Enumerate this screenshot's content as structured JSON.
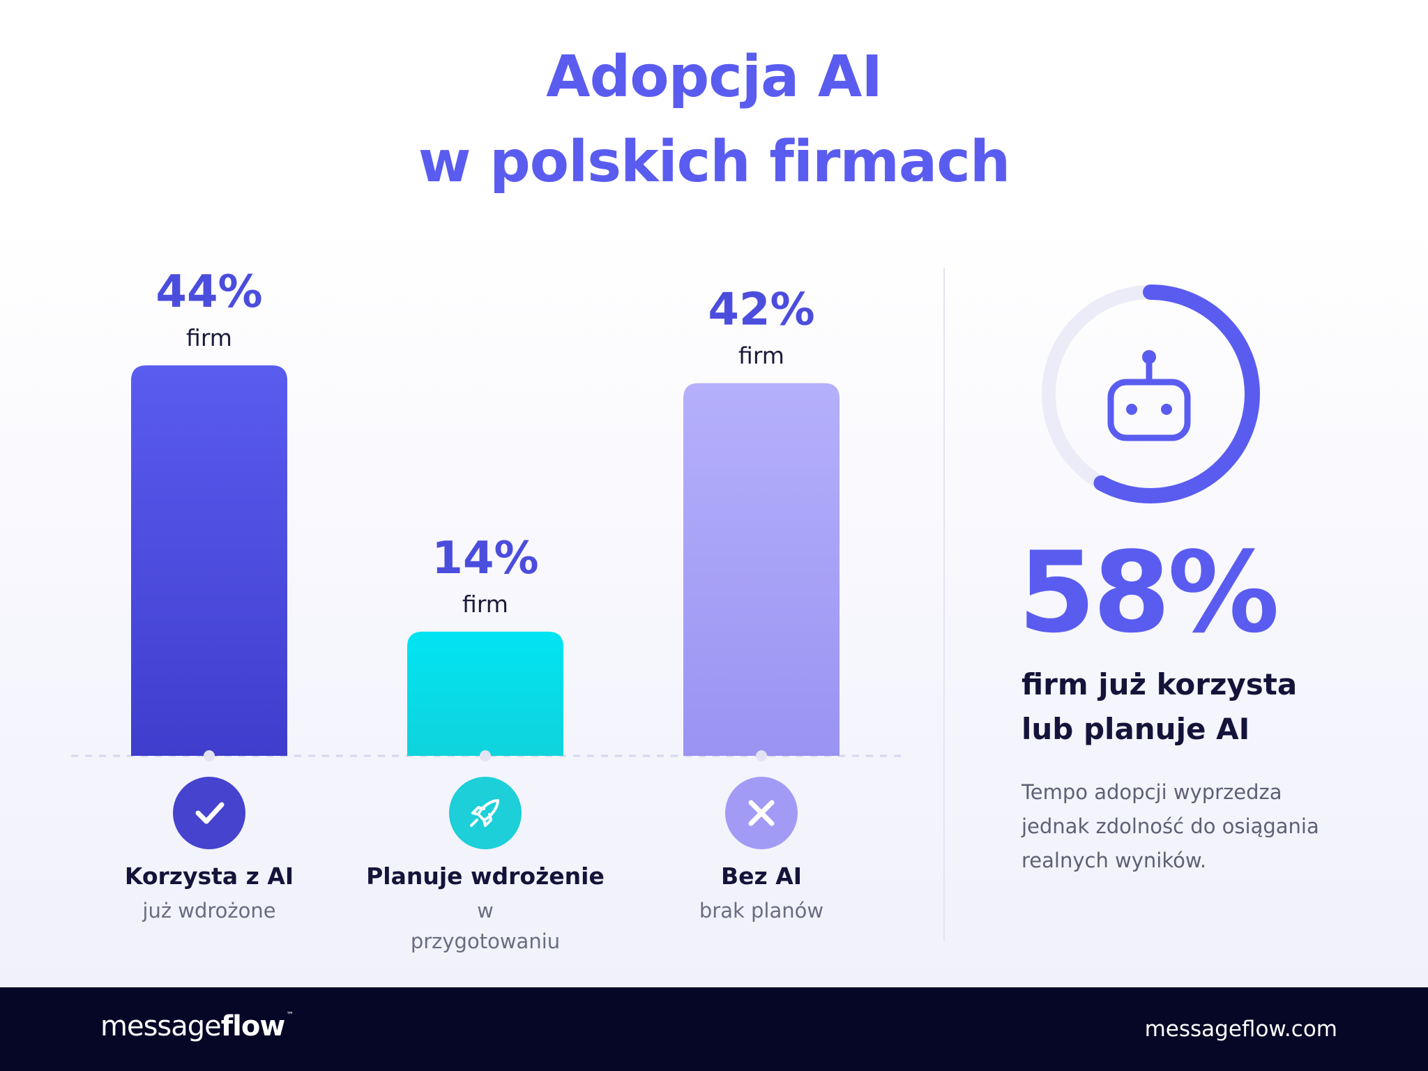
{
  "title": {
    "line1": "Adopcja AI",
    "line2": "w polskich firmach"
  },
  "chart_data": {
    "type": "bar",
    "categories": [
      "Korzysta z AI",
      "Planuje wdrożenie",
      "Bez AI"
    ],
    "values": [
      44,
      14,
      42
    ],
    "value_labels": [
      "44%",
      "14%",
      "42%"
    ],
    "value_unit_label": "firm",
    "subtitles": [
      [
        "już wdrożone"
      ],
      [
        "w",
        "przygotowaniu"
      ],
      [
        "brak planów"
      ]
    ],
    "icons": [
      "check-icon",
      "rocket-icon",
      "close-icon"
    ],
    "colors": [
      [
        "#5a5cf0",
        "#3f3dcc"
      ],
      [
        "#00e4f2",
        "#10d3dc"
      ],
      [
        "#b5b0fb",
        "#9a93f2"
      ]
    ],
    "icon_colors": [
      "#4643cf",
      "#1ccfd8",
      "#a19bf5"
    ],
    "ylim": [
      0,
      50
    ]
  },
  "summary": {
    "value": 58,
    "label_line1": "firm już korzysta",
    "label_line2": "lub planuje AI",
    "desc_line1": "Tempo adopcji wyprzedza",
    "desc_line2": "jednak zdolność do osiągania",
    "desc_line3": "realnych wyników.",
    "icon": "robot-icon",
    "ring_color": "#5a5cf0",
    "ring_track_color": "#ececf8"
  },
  "summary_text": {
    "value": "58%"
  },
  "footer": {
    "brand_light": "message",
    "brand_bold": "flow",
    "brand_tm": "™",
    "site": "messageflow.com"
  }
}
